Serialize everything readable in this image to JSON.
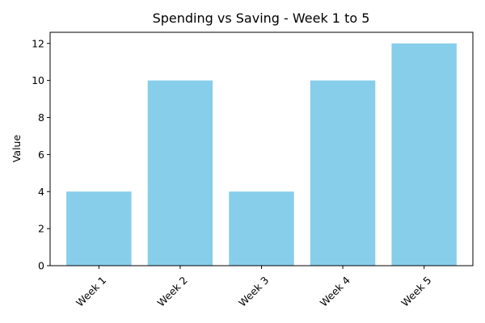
{
  "chart_data": {
    "type": "bar",
    "title": "Spending vs Saving - Week 1 to 5",
    "xlabel": "",
    "ylabel": "Value",
    "categories": [
      "Week 1",
      "Week 2",
      "Week 3",
      "Week 4",
      "Week 5"
    ],
    "values": [
      4,
      10,
      4,
      10,
      12
    ],
    "ylim": [
      0,
      12.6
    ],
    "yticks": [
      0,
      2,
      4,
      6,
      8,
      10,
      12
    ],
    "bar_color": "#87ceeb",
    "grid": false,
    "legend": "none"
  }
}
